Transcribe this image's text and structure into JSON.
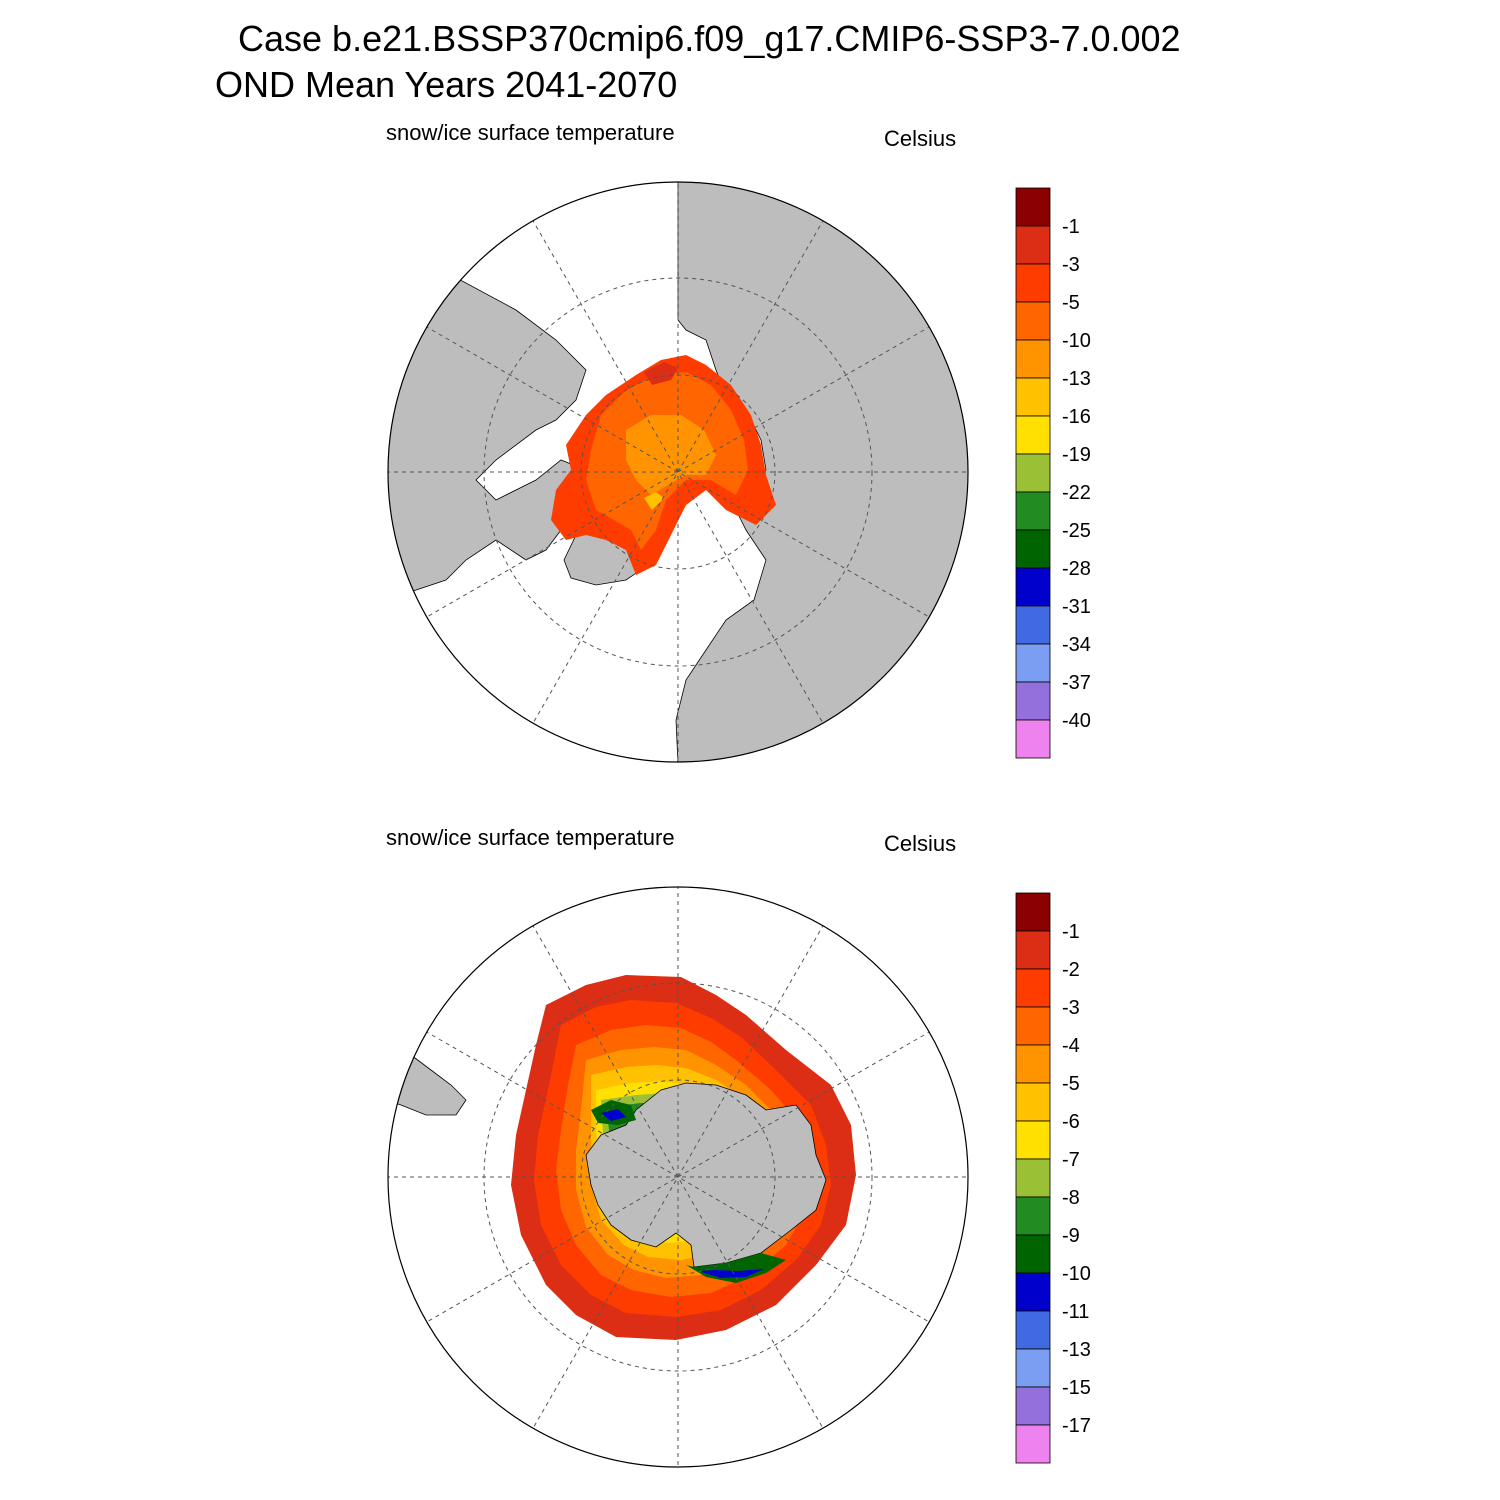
{
  "header": {
    "title_line1": "Case b.e21.BSSP370cmip6.f09_g17.CMIP6-SSP3-7.0.002",
    "title_line2": "OND Mean   Years 2041-2070"
  },
  "panels": [
    {
      "id": "north",
      "variable": "snow/ice surface temperature",
      "units": "Celsius",
      "colorbar": {
        "colors": [
          "#8b0000",
          "#dc2e14",
          "#ff3c00",
          "#ff6600",
          "#ff9400",
          "#ffc100",
          "#ffe000",
          "#9ac035",
          "#228b22",
          "#006400",
          "#0000cd",
          "#4169e1",
          "#7b9df2",
          "#9370db",
          "#ee82ee"
        ],
        "labels": [
          "-1",
          "-3",
          "-5",
          "-10",
          "-13",
          "-16",
          "-19",
          "-22",
          "-25",
          "-28",
          "-31",
          "-34",
          "-37",
          "-40"
        ]
      }
    },
    {
      "id": "south",
      "variable": "snow/ice surface temperature",
      "units": "Celsius",
      "colorbar": {
        "colors": [
          "#8b0000",
          "#dc2e14",
          "#ff3c00",
          "#ff6600",
          "#ff9400",
          "#ffc100",
          "#ffe000",
          "#9ac035",
          "#228b22",
          "#006400",
          "#0000cd",
          "#4169e1",
          "#7b9df2",
          "#9370db",
          "#ee82ee"
        ],
        "labels": [
          "-1",
          "-2",
          "-3",
          "-4",
          "-5",
          "-6",
          "-7",
          "-8",
          "-9",
          "-10",
          "-11",
          "-13",
          "-15",
          "-17"
        ]
      }
    }
  ]
}
